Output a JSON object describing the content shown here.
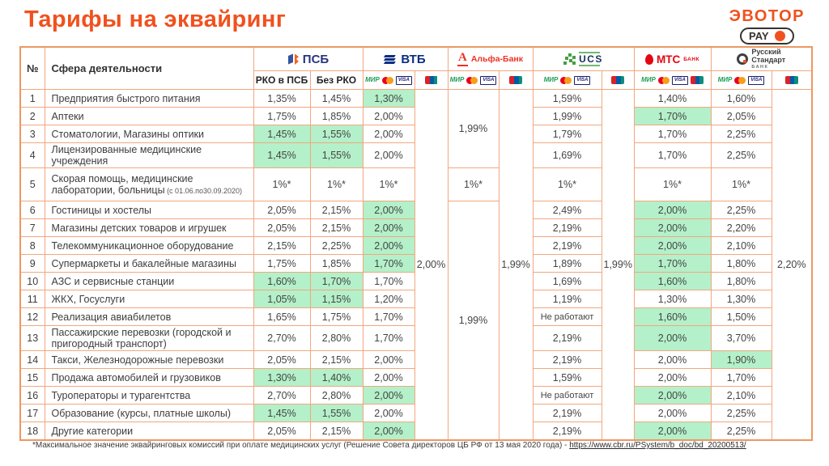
{
  "header": {
    "title": "Тарифы на эквайринг"
  },
  "logo": {
    "brand": "ЭВОТОР",
    "pay": "PAY"
  },
  "colors": {
    "accent": "#f0511e",
    "highlight": "#b4f0c9",
    "border": "#f0a87f"
  },
  "table": {
    "col_num": "№",
    "col_sphere": "Сфера деятельности",
    "psb": {
      "name": "ПСБ",
      "sub1": "РКО в ПСБ",
      "sub2": "Без РКО"
    },
    "vtb": {
      "name": "ВТБ"
    },
    "alfa": {
      "name": "Альфа-Банк"
    },
    "ucs": {
      "name": "UCS"
    },
    "mts": {
      "name": "МТС",
      "suffix": "БАНК"
    },
    "rs": {
      "name1": "Русский",
      "name2": "Стандарт",
      "suffix": "БАНК"
    },
    "icons": {
      "mir": "МИР",
      "visa": "VISA"
    },
    "merged": {
      "vtb_up": "2,00%",
      "alfa_top": "1,99%",
      "alfa_bottom": "1,99%",
      "alfa_up": "1,99%",
      "ucs_up": "1,99%",
      "rs_up": "2,20%"
    },
    "rows": [
      {
        "num": "1",
        "label": "Предприятия быстрого питания",
        "psb1": [
          "1,35%",
          0
        ],
        "psb2": [
          "1,45%",
          0
        ],
        "vtb": [
          "1,30%",
          1
        ],
        "ucs": [
          "1,59%",
          0
        ],
        "mts": [
          "1,40%",
          0
        ],
        "rs": [
          "1,60%",
          0
        ]
      },
      {
        "num": "2",
        "label": "Аптеки",
        "psb1": [
          "1,75%",
          0
        ],
        "psb2": [
          "1,85%",
          0
        ],
        "vtb": [
          "2,00%",
          0
        ],
        "ucs": [
          "1,99%",
          0
        ],
        "mts": [
          "1,70%",
          1
        ],
        "rs": [
          "2,05%",
          0
        ]
      },
      {
        "num": "3",
        "label": "Стоматологии, Магазины оптики",
        "psb1": [
          "1,45%",
          1
        ],
        "psb2": [
          "1,55%",
          1
        ],
        "vtb": [
          "2,00%",
          0
        ],
        "ucs": [
          "1,79%",
          0
        ],
        "mts": [
          "1,70%",
          0
        ],
        "rs": [
          "2,25%",
          0
        ]
      },
      {
        "num": "4",
        "label": "Лицензированные медицинские учреждения",
        "psb1": [
          "1,45%",
          1
        ],
        "psb2": [
          "1,55%",
          1
        ],
        "vtb": [
          "2,00%",
          0
        ],
        "ucs": [
          "1,69%",
          0
        ],
        "mts": [
          "1,70%",
          0
        ],
        "rs": [
          "2,25%",
          0
        ]
      },
      {
        "num": "5",
        "label": "Скорая помощь, медицинские лаборатории, больницы",
        "sublabel": "(с 01.06.по30.09.2020)",
        "psb1": [
          "1%*",
          0
        ],
        "psb2": [
          "1%*",
          0
        ],
        "vtb": [
          "1%*",
          0
        ],
        "alfa": [
          "1%*",
          0
        ],
        "ucs": [
          "1%*",
          0
        ],
        "mts": [
          "1%*",
          0
        ],
        "rs": [
          "1%*",
          0
        ]
      },
      {
        "num": "6",
        "label": "Гостиницы и хостелы",
        "psb1": [
          "2,05%",
          0
        ],
        "psb2": [
          "2,15%",
          0
        ],
        "vtb": [
          "2,00%",
          1
        ],
        "ucs": [
          "2,49%",
          0
        ],
        "mts": [
          "2,00%",
          1
        ],
        "rs": [
          "2,25%",
          0
        ]
      },
      {
        "num": "7",
        "label": "Магазины детских товаров и игрушек",
        "psb1": [
          "2,05%",
          0
        ],
        "psb2": [
          "2,15%",
          0
        ],
        "vtb": [
          "2,00%",
          1
        ],
        "ucs": [
          "2,19%",
          0
        ],
        "mts": [
          "2,00%",
          1
        ],
        "rs": [
          "2,20%",
          0
        ]
      },
      {
        "num": "8",
        "label": "Телекоммуникационное оборудование",
        "psb1": [
          "2,15%",
          0
        ],
        "psb2": [
          "2,25%",
          0
        ],
        "vtb": [
          "2,00%",
          1
        ],
        "ucs": [
          "2,19%",
          0
        ],
        "mts": [
          "2,00%",
          1
        ],
        "rs": [
          "2,10%",
          0
        ]
      },
      {
        "num": "9",
        "label": "Супермаркеты и бакалейные магазины",
        "psb1": [
          "1,75%",
          0
        ],
        "psb2": [
          "1,85%",
          0
        ],
        "vtb": [
          "1,70%",
          1
        ],
        "ucs": [
          "1,89%",
          0
        ],
        "mts": [
          "1,70%",
          1
        ],
        "rs": [
          "1,80%",
          0
        ]
      },
      {
        "num": "10",
        "label": "АЗС и сервисные станции",
        "psb1": [
          "1,60%",
          1
        ],
        "psb2": [
          "1,70%",
          1
        ],
        "vtb": [
          "1,70%",
          0
        ],
        "ucs": [
          "1,69%",
          0
        ],
        "mts": [
          "1,60%",
          1
        ],
        "rs": [
          "1,80%",
          0
        ]
      },
      {
        "num": "11",
        "label": "ЖКХ, Госуслуги",
        "psb1": [
          "1,05%",
          1
        ],
        "psb2": [
          "1,15%",
          1
        ],
        "vtb": [
          "1,20%",
          0
        ],
        "ucs": [
          "1,19%",
          0
        ],
        "mts": [
          "1,30%",
          0
        ],
        "rs": [
          "1,30%",
          0
        ]
      },
      {
        "num": "12",
        "label": "Реализация авиабилетов",
        "psb1": [
          "1,65%",
          0
        ],
        "psb2": [
          "1,75%",
          0
        ],
        "vtb": [
          "1,70%",
          0
        ],
        "ucs": [
          "Не работают",
          0
        ],
        "mts": [
          "1,60%",
          1
        ],
        "rs": [
          "1,50%",
          0
        ]
      },
      {
        "num": "13",
        "label": "Пассажирские перевозки (городской и пригородный транспорт)",
        "psb1": [
          "2,70%",
          0
        ],
        "psb2": [
          "2,80%",
          0
        ],
        "vtb": [
          "1,70%",
          0
        ],
        "ucs": [
          "2,19%",
          0
        ],
        "mts": [
          "2,00%",
          1
        ],
        "rs": [
          "3,70%",
          0
        ]
      },
      {
        "num": "14",
        "label": "Такси, Железнодорожные перевозки",
        "psb1": [
          "2,05%",
          0
        ],
        "psb2": [
          "2,15%",
          0
        ],
        "vtb": [
          "2,00%",
          0
        ],
        "ucs": [
          "2,19%",
          0
        ],
        "mts": [
          "2,00%",
          0
        ],
        "rs": [
          "1,90%",
          1
        ]
      },
      {
        "num": "15",
        "label": "Продажа автомобилей и грузовиков",
        "psb1": [
          "1,30%",
          1
        ],
        "psb2": [
          "1,40%",
          1
        ],
        "vtb": [
          "2,00%",
          0
        ],
        "ucs": [
          "1,59%",
          0
        ],
        "mts": [
          "2,00%",
          0
        ],
        "rs": [
          "1,70%",
          0
        ]
      },
      {
        "num": "16",
        "label": "Туроператоры и турагентства",
        "psb1": [
          "2,70%",
          0
        ],
        "psb2": [
          "2,80%",
          0
        ],
        "vtb": [
          "2,00%",
          1
        ],
        "ucs": [
          "Не работают",
          0
        ],
        "mts": [
          "2,00%",
          1
        ],
        "rs": [
          "2,10%",
          0
        ]
      },
      {
        "num": "17",
        "label": "Образование (курсы, платные школы)",
        "psb1": [
          "1,45%",
          1
        ],
        "psb2": [
          "1,55%",
          1
        ],
        "vtb": [
          "2,00%",
          0
        ],
        "ucs": [
          "2,19%",
          0
        ],
        "mts": [
          "2,00%",
          0
        ],
        "rs": [
          "2,25%",
          0
        ]
      },
      {
        "num": "18",
        "label": "Другие категории",
        "psb1": [
          "2,05%",
          0
        ],
        "psb2": [
          "2,15%",
          0
        ],
        "vtb": [
          "2,00%",
          1
        ],
        "ucs": [
          "2,19%",
          0
        ],
        "mts": [
          "2,00%",
          1
        ],
        "rs": [
          "2,25%",
          0
        ]
      }
    ]
  },
  "footer": {
    "note": "*Максимальное значение эквайринговых комиссий при оплате медицинских услуг (Решение Совета директоров ЦБ РФ от 13 мая 2020 года) - ",
    "link": "https://www.cbr.ru/PSystem/b_doc/bd_20200513/"
  }
}
